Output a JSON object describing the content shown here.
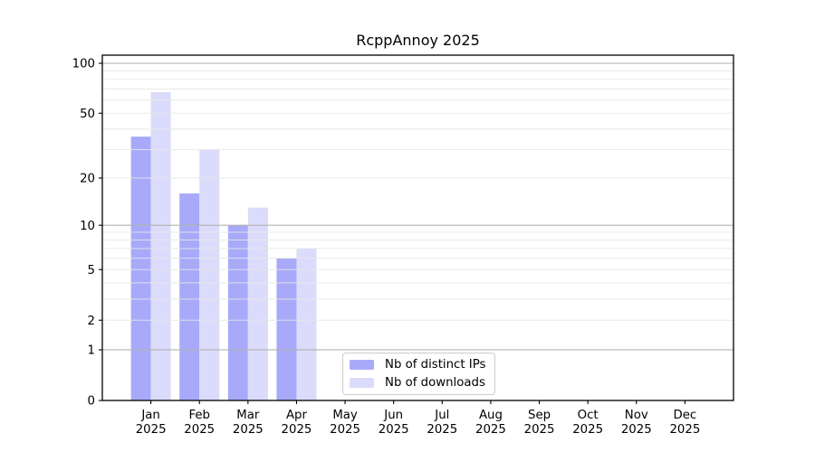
{
  "title": "RcppAnnoy 2025",
  "legend": {
    "position": "lower center",
    "items": [
      {
        "label": "Nb of distinct IPs",
        "color": "#a9a9fa"
      },
      {
        "label": "Nb of downloads",
        "color": "#dbdbfb"
      }
    ]
  },
  "chart_data": {
    "type": "bar",
    "title": "RcppAnnoy 2025",
    "categories": [
      "Jan",
      "Feb",
      "Mar",
      "Apr",
      "May",
      "Jun",
      "Jul",
      "Aug",
      "Sep",
      "Oct",
      "Nov",
      "Dec"
    ],
    "x_tick_second_line": "2025",
    "series": [
      {
        "name": "Nb of distinct IPs",
        "color": "#a9a9fa",
        "values": [
          36,
          16,
          10,
          6,
          0,
          0,
          0,
          0,
          0,
          0,
          0,
          0
        ]
      },
      {
        "name": "Nb of downloads",
        "color": "#dbdbfb",
        "values": [
          67,
          30,
          13,
          7,
          0,
          0,
          0,
          0,
          0,
          0,
          0,
          0
        ]
      }
    ],
    "xlabel": "",
    "ylabel": "",
    "yscale": "log1p",
    "ylim": [
      0,
      112
    ],
    "y_ticks": [
      0,
      1,
      2,
      5,
      10,
      20,
      50,
      100
    ],
    "y_major_gridlines": [
      1,
      10,
      100
    ],
    "y_minor_gridlines": [
      2,
      3,
      4,
      5,
      6,
      7,
      8,
      9,
      20,
      30,
      40,
      50,
      60,
      70,
      80,
      90
    ],
    "grid": "on, drawn above bars",
    "legend_position": "lower center"
  },
  "colors": {
    "background": "#ffffff",
    "spine": "#000000",
    "tick_text": "#000000",
    "major_grid": "#b2b2b2",
    "minor_grid": "#e7e7e7",
    "legend_border": "#cccccc"
  }
}
